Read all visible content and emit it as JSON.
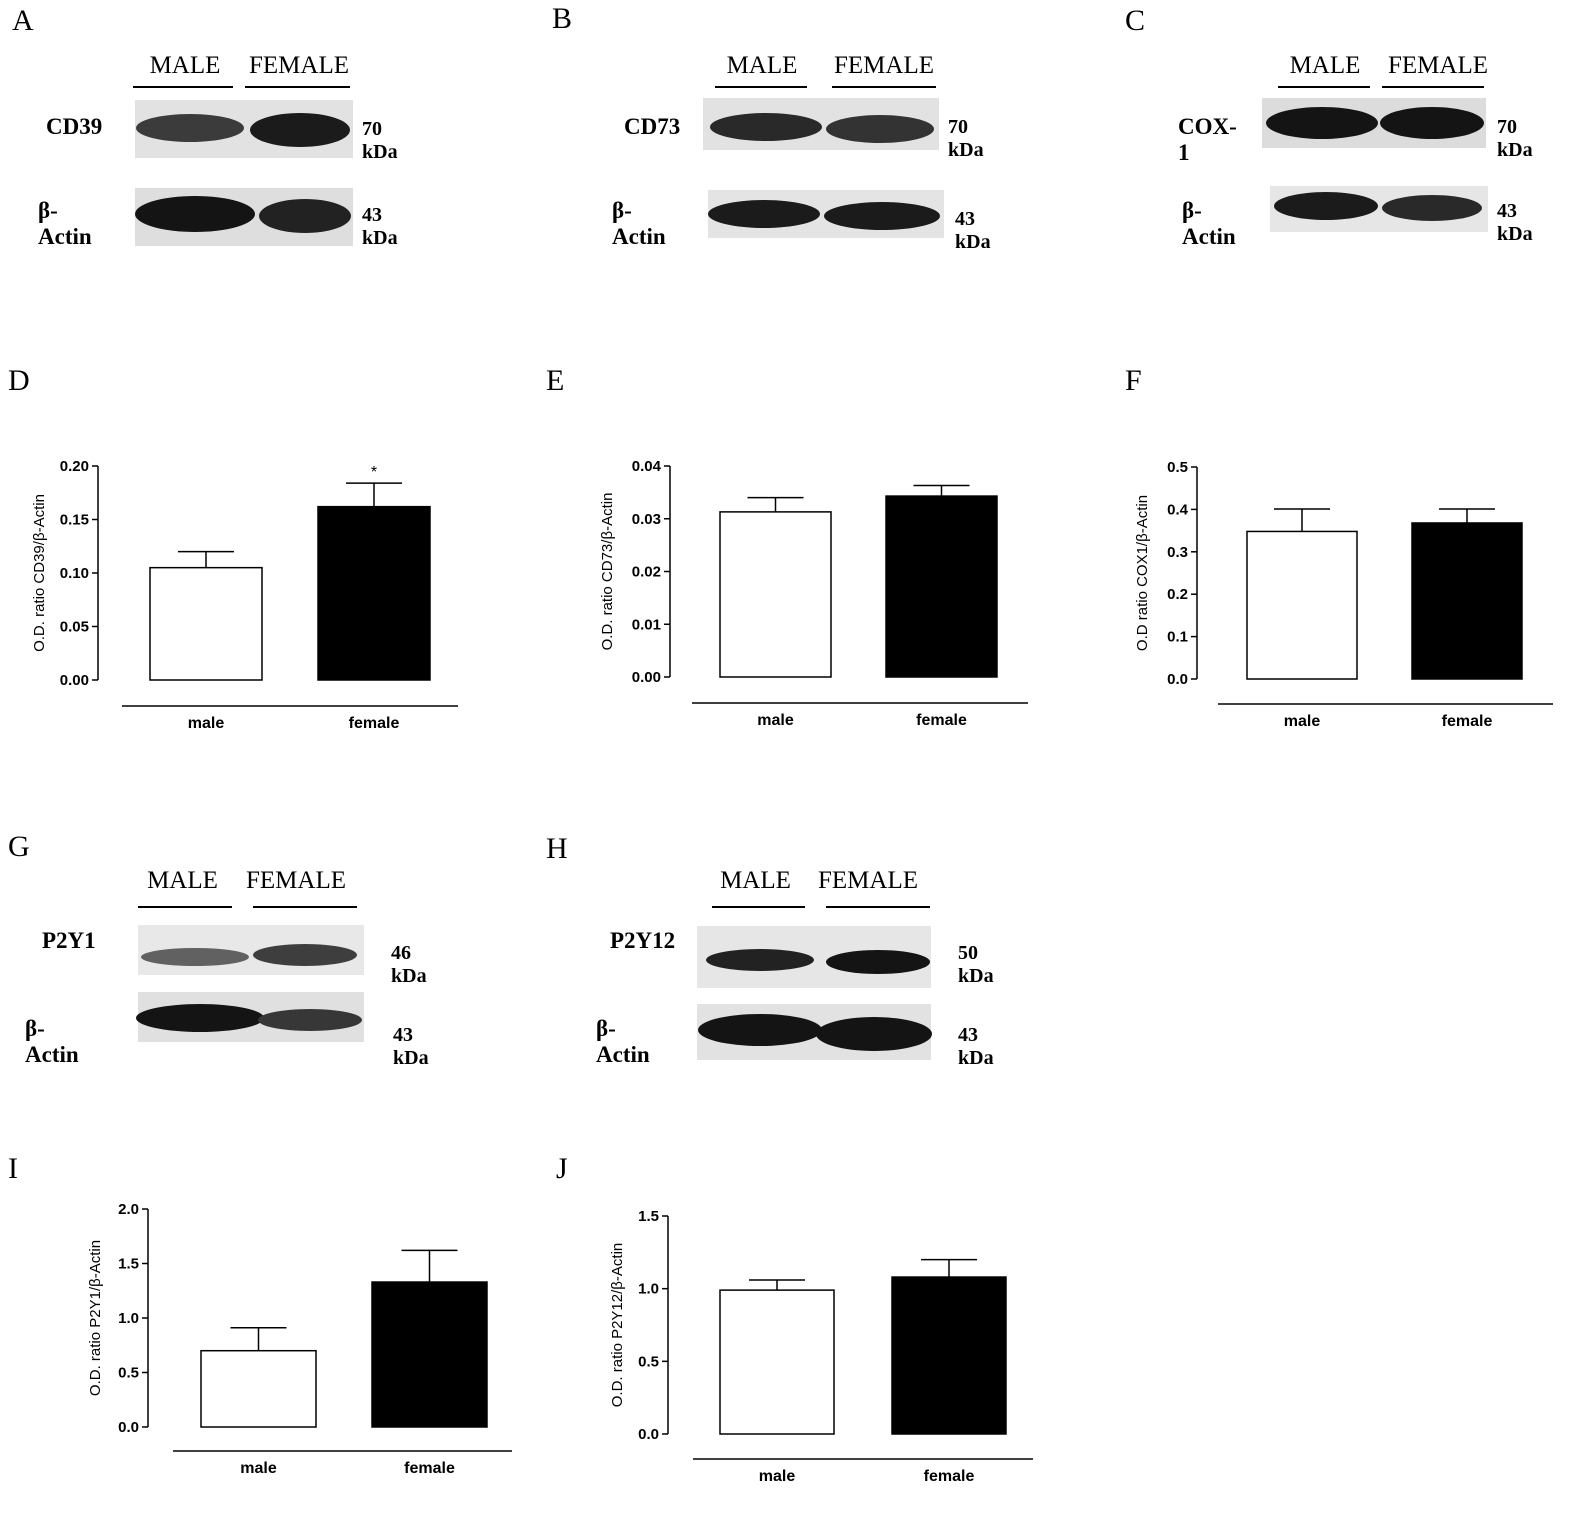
{
  "panel_labels": [
    "A",
    "B",
    "C",
    "D",
    "E",
    "F",
    "G",
    "H",
    "I",
    "J"
  ],
  "blots": [
    {
      "id": "A",
      "lanes": [
        "MALE",
        "FEMALE"
      ],
      "rows": [
        {
          "protein": "CD39",
          "kda": "70 kDa",
          "intensity": [
            0.72,
            0.95
          ]
        },
        {
          "protein": "β-Actin",
          "kda": "43 kDa",
          "intensity": [
            1.0,
            0.9
          ]
        }
      ]
    },
    {
      "id": "B",
      "lanes": [
        "MALE",
        "FEMALE"
      ],
      "rows": [
        {
          "protein": "CD73",
          "kda": "70 kDa",
          "intensity": [
            0.85,
            0.78
          ]
        },
        {
          "protein": "β-Actin",
          "kda": "43 kDa",
          "intensity": [
            0.95,
            0.95
          ]
        }
      ]
    },
    {
      "id": "C",
      "lanes": [
        "MALE",
        "FEMALE"
      ],
      "rows": [
        {
          "protein": "COX-1",
          "kda": "70 kDa",
          "intensity": [
            1.0,
            1.0
          ]
        },
        {
          "protein": "β-Actin",
          "kda": "43 kDa",
          "intensity": [
            0.95,
            0.85
          ]
        }
      ]
    },
    {
      "id": "G",
      "lanes": [
        "MALE",
        "FEMALE"
      ],
      "rows": [
        {
          "protein": "P2Y1",
          "kda": "46 kDa",
          "intensity": [
            0.45,
            0.7
          ]
        },
        {
          "protein": "β-Actin",
          "kda": "43 kDa",
          "intensity": [
            1.0,
            0.75
          ]
        }
      ]
    },
    {
      "id": "H",
      "lanes": [
        "MALE",
        "FEMALE"
      ],
      "rows": [
        {
          "protein": "P2Y12",
          "kda": "50 kDa",
          "intensity": [
            0.9,
            1.0
          ]
        },
        {
          "protein": "β-Actin",
          "kda": "43 kDa",
          "intensity": [
            1.0,
            1.0
          ]
        }
      ]
    }
  ],
  "chart_data": [
    {
      "id": "D",
      "type": "bar",
      "categories": [
        "male",
        "female"
      ],
      "values": [
        0.105,
        0.162
      ],
      "errors": [
        0.015,
        0.022
      ],
      "colors": [
        "#ffffff",
        "#000000"
      ],
      "ylabel": "O.D. ratio CD39/β-Actin",
      "ylim": [
        0,
        0.2
      ],
      "yticks": [
        "0.00",
        "0.05",
        "0.10",
        "0.15",
        "0.20"
      ],
      "annotations": [
        {
          "category": "female",
          "text": "*"
        }
      ]
    },
    {
      "id": "E",
      "type": "bar",
      "categories": [
        "male",
        "female"
      ],
      "values": [
        0.0313,
        0.0343
      ],
      "errors": [
        0.0027,
        0.002
      ],
      "colors": [
        "#ffffff",
        "#000000"
      ],
      "ylabel": "O.D. ratio CD73/β-Actin",
      "ylim": [
        0,
        0.04
      ],
      "yticks": [
        "0.00",
        "0.01",
        "0.02",
        "0.03",
        "0.04"
      ],
      "annotations": []
    },
    {
      "id": "F",
      "type": "bar",
      "categories": [
        "male",
        "female"
      ],
      "values": [
        0.348,
        0.368
      ],
      "errors": [
        0.053,
        0.033
      ],
      "colors": [
        "#ffffff",
        "#000000"
      ],
      "ylabel": "O.D ratio COX1/β-Actin",
      "ylim": [
        0,
        0.5
      ],
      "yticks": [
        "0.0",
        "0.1",
        "0.2",
        "0.3",
        "0.4",
        "0.5"
      ],
      "annotations": []
    },
    {
      "id": "I",
      "type": "bar",
      "categories": [
        "male",
        "female"
      ],
      "values": [
        0.7,
        1.33
      ],
      "errors": [
        0.21,
        0.29
      ],
      "colors": [
        "#ffffff",
        "#000000"
      ],
      "ylabel": "O.D. ratio P2Y1/β-Actin",
      "ylim": [
        0,
        2.0
      ],
      "yticks": [
        "0.0",
        "0.5",
        "1.0",
        "1.5",
        "2.0"
      ],
      "annotations": []
    },
    {
      "id": "J",
      "type": "bar",
      "categories": [
        "male",
        "female"
      ],
      "values": [
        0.99,
        1.08
      ],
      "errors": [
        0.07,
        0.12
      ],
      "colors": [
        "#ffffff",
        "#000000"
      ],
      "ylabel": "O.D. ratio P2Y12/β-Actin",
      "ylim": [
        0,
        1.5
      ],
      "yticks": [
        "0.0",
        "0.5",
        "1.0",
        "1.5"
      ],
      "annotations": []
    }
  ]
}
